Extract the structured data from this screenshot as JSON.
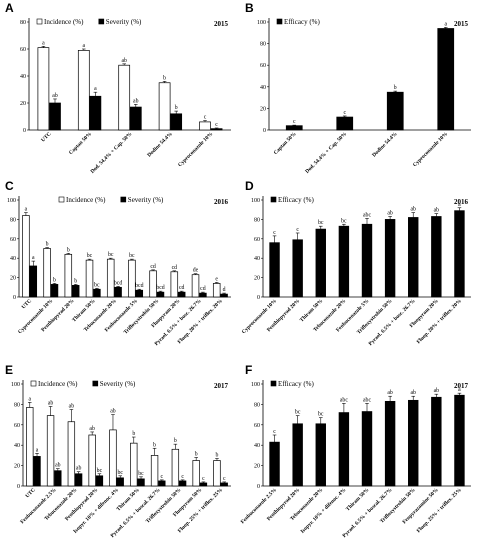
{
  "panels_text": {
    "A": "A",
    "B": "B",
    "C": "C",
    "D": "D",
    "E": "E",
    "F": "F"
  },
  "colors": {
    "incidence": "#ffffff",
    "severity": "#000000",
    "efficacy": "#000000",
    "stroke": "#000000"
  },
  "chart_data": [
    {
      "id": "A",
      "type": "bar",
      "year": "2015",
      "ylim": [
        0,
        80
      ],
      "yticks": [
        0,
        20,
        40,
        60,
        80
      ],
      "categories": [
        "UTC",
        "Captan 50%",
        "Dod. 54.4% + Cap. 50%",
        "Dodine 54.4%",
        "Cyproconazole 10%"
      ],
      "series": [
        {
          "name": "Incidence (%)",
          "values": [
            61,
            59,
            48,
            35,
            6
          ],
          "errors": [
            1,
            1,
            1,
            1,
            1
          ],
          "letters": [
            "a",
            "a",
            "ab",
            "b",
            "c"
          ]
        },
        {
          "name": "Severity (%)",
          "values": [
            20,
            25,
            17,
            12,
            1
          ],
          "errors": [
            3,
            3,
            2,
            2,
            0.5
          ],
          "letters": [
            "ab",
            "a",
            "ab",
            "b",
            "c"
          ]
        }
      ]
    },
    {
      "id": "B",
      "type": "bar",
      "year": "2015",
      "ylim": [
        0,
        100
      ],
      "yticks": [
        0,
        20,
        40,
        60,
        80,
        100
      ],
      "categories": [
        "Captan 50%",
        "Dod. 54.4% + Cap. 50%",
        "Dodine 54.4%",
        "Cyproconazole 10%"
      ],
      "series": [
        {
          "name": "Efficacy (%)",
          "values": [
            4,
            12,
            35,
            94
          ],
          "errors": [
            0.5,
            1,
            1,
            1
          ],
          "letters": [
            "c",
            "c",
            "b",
            "a"
          ]
        }
      ]
    },
    {
      "id": "C",
      "type": "bar",
      "year": "2016",
      "ylim": [
        0,
        100
      ],
      "yticks": [
        0,
        20,
        40,
        60,
        80,
        100
      ],
      "categories": [
        "UTC",
        "Cyproconazole 10%",
        "Penthiopyrad 20%",
        "Thiram 50%",
        "Tebuconazole 20%",
        "Fenbuconazole 5%",
        "Trifloxystrobin 50%",
        "Fluopyram 20%",
        "Pyrael. 6.5% + bosc. 26.7%",
        "Fluop. 20% + triflox. 20%"
      ],
      "series": [
        {
          "name": "Incidence (%)",
          "values": [
            84,
            50,
            44,
            38,
            39,
            38,
            27,
            26,
            23,
            14
          ],
          "errors": [
            3,
            1,
            1,
            1,
            1,
            1,
            1,
            1,
            1,
            1
          ],
          "letters": [
            "a",
            "b",
            "b",
            "bc",
            "bc",
            "bc",
            "cd",
            "cd",
            "de",
            "e"
          ]
        },
        {
          "name": "Severity (%)",
          "values": [
            32,
            13,
            12,
            8,
            10,
            7,
            5,
            5,
            4,
            3
          ],
          "errors": [
            5,
            1,
            1,
            1,
            1,
            1,
            1,
            1,
            1,
            1
          ],
          "letters": [
            "a",
            "b",
            "b",
            "bc",
            "bcd",
            "bcd",
            "bcd",
            "cd",
            "cd",
            "d"
          ]
        }
      ]
    },
    {
      "id": "D",
      "type": "bar",
      "year": "2016",
      "ylim": [
        0,
        100
      ],
      "yticks": [
        0,
        20,
        40,
        60,
        80,
        100
      ],
      "categories": [
        "Cyproconazole 10%",
        "Penthiopyrad 20%",
        "Thiram 50%",
        "Tebuconazole 20%",
        "Fenbuconazole 5%",
        "Trifloxystrobin 50%",
        "Pyrael. 6.5% + bosc. 26.7%",
        "Fluopyram 20%",
        "Fluop. 20% + triflox. 20%"
      ],
      "series": [
        {
          "name": "Efficacy (%)",
          "values": [
            56,
            59,
            70,
            73,
            75,
            80,
            82,
            83,
            89
          ],
          "errors": [
            7,
            7,
            3,
            2,
            6,
            3,
            5,
            3,
            3
          ],
          "letters": [
            "c",
            "c",
            "bc",
            "bc",
            "abc",
            "ab",
            "ab",
            "ab",
            "a"
          ]
        }
      ]
    },
    {
      "id": "E",
      "type": "bar",
      "year": "2017",
      "ylim": [
        0,
        100
      ],
      "yticks": [
        0,
        20,
        40,
        60,
        80,
        100
      ],
      "categories": [
        "UTC",
        "Fenbuconazole 2.5%",
        "Tebuconazole 20%",
        "Penthiopyrad 20%",
        "Isopyr. 10% + difenoc. 4%",
        "Thiram 50%",
        "Pyrael. 6.5% + boscal. 26.7%",
        "Trifloxystrobin 50%",
        "Fluopyram 50%",
        "Fluop. 25% + triflox. 25%"
      ],
      "series": [
        {
          "name": "Incidence (%)",
          "values": [
            77,
            69,
            63,
            50,
            55,
            42,
            30,
            36,
            25,
            25
          ],
          "errors": [
            5,
            9,
            12,
            3,
            15,
            6,
            7,
            5,
            3,
            2
          ],
          "letters": [
            "a",
            "ab",
            "ab",
            "ab",
            "ab",
            "b",
            "b",
            "b",
            "b",
            "b"
          ]
        },
        {
          "name": "Severity (%)",
          "values": [
            29,
            15,
            12,
            10,
            8,
            7,
            5,
            5,
            3,
            3
          ],
          "errors": [
            3,
            2,
            2,
            2,
            2,
            2,
            1,
            1,
            1,
            1
          ],
          "letters": [
            "a",
            "ab",
            "ab",
            "bc",
            "bc",
            "bc",
            "c",
            "c",
            "c",
            "c"
          ]
        }
      ]
    },
    {
      "id": "F",
      "type": "bar",
      "year": "2017",
      "ylim": [
        0,
        100
      ],
      "yticks": [
        0,
        20,
        40,
        60,
        80,
        100
      ],
      "categories": [
        "Fenbuconazole 2.5%",
        "Penthiopyrad 20%",
        "Tebuconazole 20%",
        "Isopyr. 10% + difenoc. 4%",
        "Thiram 50%",
        "Pyrael. 6.5% + boscal. 26.7%",
        "Trifloxystrobin 50%",
        "Fenpyrazamine 50%",
        "Fluop. 25% + triflox. 25%"
      ],
      "series": [
        {
          "name": "Efficacy (%)",
          "values": [
            43,
            61,
            61,
            72,
            73,
            83,
            84,
            87,
            89
          ],
          "errors": [
            7,
            8,
            6,
            9,
            8,
            5,
            4,
            3,
            2
          ],
          "letters": [
            "c",
            "bc",
            "bc",
            "abc",
            "abc",
            "ab",
            "ab",
            "ab",
            "a"
          ]
        }
      ]
    }
  ]
}
